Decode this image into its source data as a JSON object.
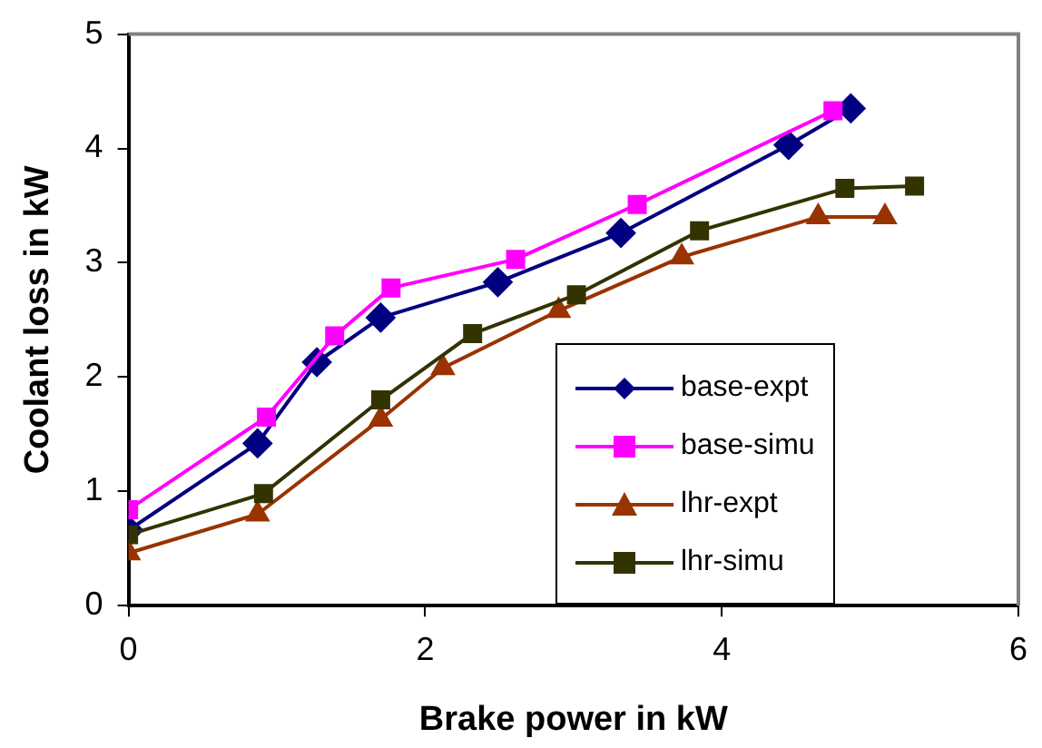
{
  "chart_data": {
    "type": "line",
    "xlabel": "Brake power in kW",
    "ylabel": "Coolant loss in kW",
    "xlim": [
      0,
      6
    ],
    "xticks": [
      0,
      2,
      4,
      6
    ],
    "ylim": [
      0,
      5
    ],
    "yticks": [
      0,
      1,
      2,
      3,
      4,
      5
    ],
    "grid": false,
    "legend": "bottom right",
    "line_style": "solid",
    "series": [
      {
        "name": "base-expt",
        "color": "#000080",
        "marker": "diamond",
        "x": [
          0,
          0.87,
          1.27,
          1.7,
          2.49,
          3.32,
          4.45,
          4.87
        ],
        "values": [
          0.66,
          1.42,
          2.13,
          2.52,
          2.83,
          3.26,
          4.03,
          4.35
        ]
      },
      {
        "name": "base-simu",
        "color": "#ff00ff",
        "marker": "square",
        "x": [
          0,
          0.93,
          1.39,
          1.77,
          2.61,
          3.43,
          4.75
        ],
        "values": [
          0.84,
          1.65,
          2.36,
          2.78,
          3.03,
          3.51,
          4.33
        ]
      },
      {
        "name": "lhr-expt",
        "color": "#993300",
        "marker": "triangle",
        "x": [
          0,
          0.87,
          1.7,
          2.12,
          2.9,
          3.73,
          4.65,
          5.1
        ],
        "values": [
          0.46,
          0.8,
          1.63,
          2.08,
          2.58,
          3.05,
          3.4,
          3.4
        ]
      },
      {
        "name": "lhr-simu",
        "color": "#333300",
        "marker": "square",
        "x": [
          0,
          0.91,
          1.7,
          2.32,
          3.02,
          3.85,
          4.83,
          5.3
        ],
        "values": [
          0.62,
          0.98,
          1.8,
          2.38,
          2.72,
          3.28,
          3.65,
          3.67
        ]
      }
    ]
  }
}
